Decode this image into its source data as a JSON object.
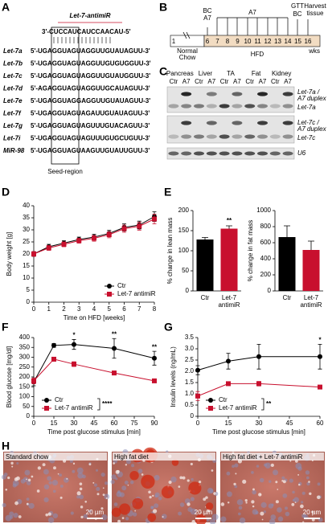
{
  "panel_letters": [
    "A",
    "B",
    "C",
    "D",
    "E",
    "F",
    "G",
    "H"
  ],
  "panel_a": {
    "antimir_label": "Let-7-antimiR",
    "antimir_sequence": "3'-CUCCAUCAUCCAACAU-5'",
    "rows": [
      {
        "name": "Let-7a",
        "sequence": "5'-UGAGGUAGUAGGUUGUAUAGUU-3'"
      },
      {
        "name": "Let-7b",
        "sequence": "5'-UGAGGUAGUAGGUUGUGUGGUU-3'"
      },
      {
        "name": "Let-7c",
        "sequence": "5'-UGAGGUAGUAGGUUGUAUGGUU-3'"
      },
      {
        "name": "Let-7d",
        "sequence": "5'-AGAGGUAGUAGGUUGCAUAGUU-3'"
      },
      {
        "name": "Let-7e",
        "sequence": "5'-UGAGGUAGGAGGUUGUAUAGUU-3'"
      },
      {
        "name": "Let-7f",
        "sequence": "5'-UGAGGUAGUAGAUUGUAUAGUU-3'"
      },
      {
        "name": "Let-7g",
        "sequence": "5'-UGAGGUAGUAGUUUGUACAGUU-3'"
      },
      {
        "name": "Let-7i",
        "sequence": "5'-UGAGGUAGUAGUUUGUGCUGUU-3'"
      },
      {
        "name": "MiR-98",
        "sequence": "5'-UGAGGUAGUAAGUUGUAUUGUU-3'"
      }
    ],
    "seed_label": "Seed-region"
  },
  "panel_b": {
    "start_labels": [
      "BC",
      "A7"
    ],
    "middle_label": "A7",
    "end_labels": [
      "GTT",
      "BC"
    ],
    "harvest_label": "Harvest tissue",
    "week_ticks": [
      1,
      6,
      7,
      8,
      9,
      10,
      11,
      12,
      13,
      14,
      15,
      16
    ],
    "unit": "wks",
    "phases": [
      "Normal Chow",
      "HFD"
    ]
  },
  "panel_c": {
    "tissues": [
      "Pancreas",
      "Liver",
      "TA",
      "Fat",
      "Kidney"
    ],
    "lane_labels": [
      "Ctr",
      "A7"
    ],
    "blot_labels": [
      "Let-7a /",
      "A7 duplex",
      "Let-7a",
      "Let-7c /",
      "A7 duplex",
      "Let-7c",
      "U6"
    ]
  },
  "panel_h": {
    "images": [
      {
        "title": "Standard chow",
        "scale_bar": "20 µm"
      },
      {
        "title": "High fat diet",
        "scale_bar": "20 µm"
      },
      {
        "title": "High fat diet + Let-7 antimiR",
        "scale_bar": "20 µm"
      }
    ]
  },
  "chart_data": [
    {
      "type": "line",
      "x_label": "Time on HFD [weeks]",
      "y_label": "Body weight [g]",
      "x": [
        0,
        1,
        2,
        3,
        4,
        5,
        6,
        7,
        8
      ],
      "xlim": [
        0,
        8
      ],
      "xticks": [
        0,
        1,
        2,
        3,
        4,
        5,
        6,
        7,
        8
      ],
      "ylim": [
        0,
        40
      ],
      "yticks": [
        0,
        5,
        10,
        15,
        20,
        25,
        30,
        35,
        40
      ],
      "legend": "lower right",
      "series": [
        {
          "name": "Ctr",
          "color": "#000000",
          "marker": "circle",
          "values": [
            20,
            23,
            24.5,
            26,
            27,
            28.5,
            31,
            32,
            35.5
          ],
          "errors": [
            1,
            1,
            1,
            1,
            1.2,
            1.3,
            1.5,
            1.6,
            2
          ]
        },
        {
          "name": "Let-7 antimiR",
          "color": "#c8102e",
          "marker": "square",
          "values": [
            20,
            22.5,
            24,
            25.5,
            26.5,
            28,
            30.5,
            31.5,
            34.5
          ],
          "errors": [
            1,
            1,
            1,
            1,
            1.2,
            1.3,
            1.5,
            1.6,
            2
          ]
        }
      ]
    },
    {
      "type": "bar",
      "y_label": "% change in lean mass",
      "categories": [
        "Ctr",
        "Let-7 antimiR"
      ],
      "values": [
        128,
        155
      ],
      "errors": [
        5,
        7
      ],
      "colors": [
        "#000000",
        "#c8102e"
      ],
      "significance": [
        null,
        "**"
      ],
      "ylim": [
        0,
        200
      ],
      "yticks": [
        0,
        50,
        100,
        150,
        200
      ]
    },
    {
      "type": "bar",
      "y_label": "% change in fat mass",
      "categories": [
        "Ctr",
        "Let-7 antimiR"
      ],
      "values": [
        670,
        510
      ],
      "errors": [
        140,
        110
      ],
      "colors": [
        "#000000",
        "#c8102e"
      ],
      "ylim": [
        0,
        1000
      ],
      "yticks": [
        0,
        200,
        400,
        600,
        800,
        1000
      ]
    },
    {
      "type": "line",
      "x_label": "Time post glucose stimulus [min]",
      "y_label": "Blood glucose [mg/dl]",
      "x": [
        0,
        15,
        30,
        60,
        90
      ],
      "xlim": [
        0,
        90
      ],
      "xticks": [
        0,
        15,
        30,
        45,
        60,
        75,
        90
      ],
      "ylim": [
        0,
        400
      ],
      "yticks": [
        0,
        50,
        100,
        150,
        200,
        250,
        300,
        350,
        400
      ],
      "legend": "lower left",
      "significance": [
        null,
        null,
        "*",
        "**",
        "**"
      ],
      "legend_annotation": "****",
      "series": [
        {
          "name": "Ctr",
          "color": "#000000",
          "marker": "circle",
          "values": [
            175,
            360,
            365,
            345,
            295
          ],
          "errors": [
            20,
            10,
            25,
            50,
            35
          ]
        },
        {
          "name": "Let-7 antimiR",
          "color": "#c8102e",
          "marker": "square",
          "values": [
            180,
            290,
            265,
            220,
            180
          ],
          "errors": [
            15,
            10,
            12,
            10,
            8
          ]
        }
      ]
    },
    {
      "type": "line",
      "x_label": "Time post glucose stimulus [min]",
      "y_label": "Insulin levels (ng/mL)",
      "x": [
        0,
        15,
        30,
        60
      ],
      "xlim": [
        0,
        60
      ],
      "xticks": [
        0,
        15,
        30,
        45,
        60
      ],
      "ylim": [
        0,
        3.5
      ],
      "yticks": [
        0,
        0.5,
        {
          "value": 1,
          "label": "1.0"
        },
        1.5,
        {
          "value": 2,
          "label": "2.0"
        },
        2.5,
        {
          "value": 3,
          "label": "3.0"
        },
        3.5
      ],
      "legend": "lower left",
      "significance": [
        null,
        null,
        null,
        "*"
      ],
      "legend_annotation": "**",
      "series": [
        {
          "name": "Ctr",
          "color": "#000000",
          "marker": "circle",
          "values": [
            2.05,
            2.45,
            2.65,
            2.65
          ],
          "errors": [
            0.2,
            0.35,
            0.55,
            0.55
          ]
        },
        {
          "name": "Let-7 antimiR",
          "color": "#c8102e",
          "marker": "square",
          "values": [
            0.9,
            1.45,
            1.45,
            1.3
          ],
          "errors": [
            0.2,
            0.05,
            0.1,
            0.05
          ]
        }
      ]
    }
  ]
}
